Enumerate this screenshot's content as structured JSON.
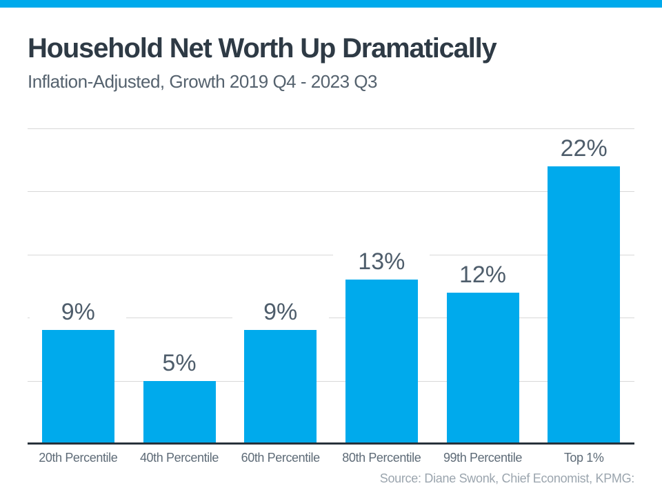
{
  "page": {
    "background_color": "#ffffff",
    "accent_color": "#00aaec"
  },
  "header": {
    "title": "Household Net Worth Up Dramatically",
    "subtitle": "Inflation-Adjusted, Growth 2019 Q4 - 2023 Q3"
  },
  "chart_data": {
    "type": "bar",
    "title": "Household Net Worth Up Dramatically",
    "subtitle": "Inflation-Adjusted, Growth 2019 Q4 - 2023 Q3",
    "categories": [
      "20th Percentile",
      "40th Percentile",
      "60th Percentile",
      "80th Percentile",
      "99th Percentile",
      "Top 1%"
    ],
    "values": [
      9,
      5,
      9,
      13,
      12,
      22
    ],
    "value_labels": [
      "9%",
      "5%",
      "9%",
      "13%",
      "12%",
      "22%"
    ],
    "xlabel": "",
    "ylabel": "",
    "ylim": [
      0,
      25
    ],
    "gridline_interval": 5,
    "grid": true,
    "legend": false,
    "y_tick_labels_visible": false,
    "bar_color": "#00aaec",
    "gridline_color": "#d8d8d8",
    "axis_line_color": "#28323b",
    "data_label_color": "#4e5d6b",
    "category_label_color": "#5e6b77"
  },
  "footer": {
    "source": "Source: Diane Swonk, Chief Economist, KPMG:"
  }
}
